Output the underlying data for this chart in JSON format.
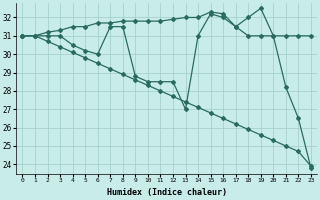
{
  "xlabel": "Humidex (Indice chaleur)",
  "background_color": "#c8ece8",
  "grid_color": "#a0ccc8",
  "line_color": "#2a6b60",
  "xlim": [
    -0.5,
    23.5
  ],
  "ylim": [
    23.5,
    32.8
  ],
  "yticks": [
    24,
    25,
    26,
    27,
    28,
    29,
    30,
    31,
    32
  ],
  "xticks": [
    0,
    1,
    2,
    3,
    4,
    5,
    6,
    7,
    8,
    9,
    10,
    11,
    12,
    13,
    14,
    15,
    16,
    17,
    18,
    19,
    20,
    21,
    22,
    23
  ],
  "series": [
    {
      "x": [
        0,
        1,
        2,
        3,
        4,
        5,
        6,
        7,
        8,
        9,
        10,
        11,
        12,
        13,
        14,
        15,
        16,
        17,
        18,
        19,
        20,
        21,
        22,
        23
      ],
      "y": [
        31.0,
        31.0,
        30.7,
        30.4,
        30.1,
        29.8,
        29.5,
        29.2,
        28.9,
        28.6,
        28.3,
        28.0,
        27.7,
        27.4,
        27.1,
        26.8,
        26.5,
        26.2,
        25.9,
        25.6,
        25.3,
        25.0,
        24.7,
        23.9
      ]
    },
    {
      "x": [
        0,
        1,
        2,
        3,
        4,
        5,
        6,
        7,
        8,
        9,
        10,
        11,
        12,
        13,
        14,
        15,
        16,
        17,
        18,
        19,
        20,
        21,
        22,
        23
      ],
      "y": [
        31.0,
        31.0,
        31.0,
        31.0,
        30.5,
        30.2,
        30.0,
        31.5,
        31.5,
        28.8,
        28.5,
        28.5,
        28.5,
        27.0,
        31.0,
        32.2,
        32.0,
        31.5,
        31.0,
        31.0,
        31.0,
        28.2,
        26.5,
        23.8
      ]
    },
    {
      "x": [
        0,
        1,
        2,
        3,
        4,
        5,
        6,
        7,
        8,
        9,
        10,
        11,
        12,
        13,
        14,
        15,
        16,
        17,
        18,
        19,
        20,
        21,
        22,
        23
      ],
      "y": [
        31.0,
        31.0,
        31.2,
        31.3,
        31.5,
        31.5,
        31.7,
        31.7,
        31.8,
        31.8,
        31.8,
        31.8,
        31.9,
        32.0,
        32.0,
        32.3,
        32.2,
        31.5,
        32.0,
        32.5,
        31.0,
        31.0,
        31.0,
        31.0
      ]
    }
  ],
  "marker": "D",
  "markersize": 2.0,
  "linewidth": 0.9
}
